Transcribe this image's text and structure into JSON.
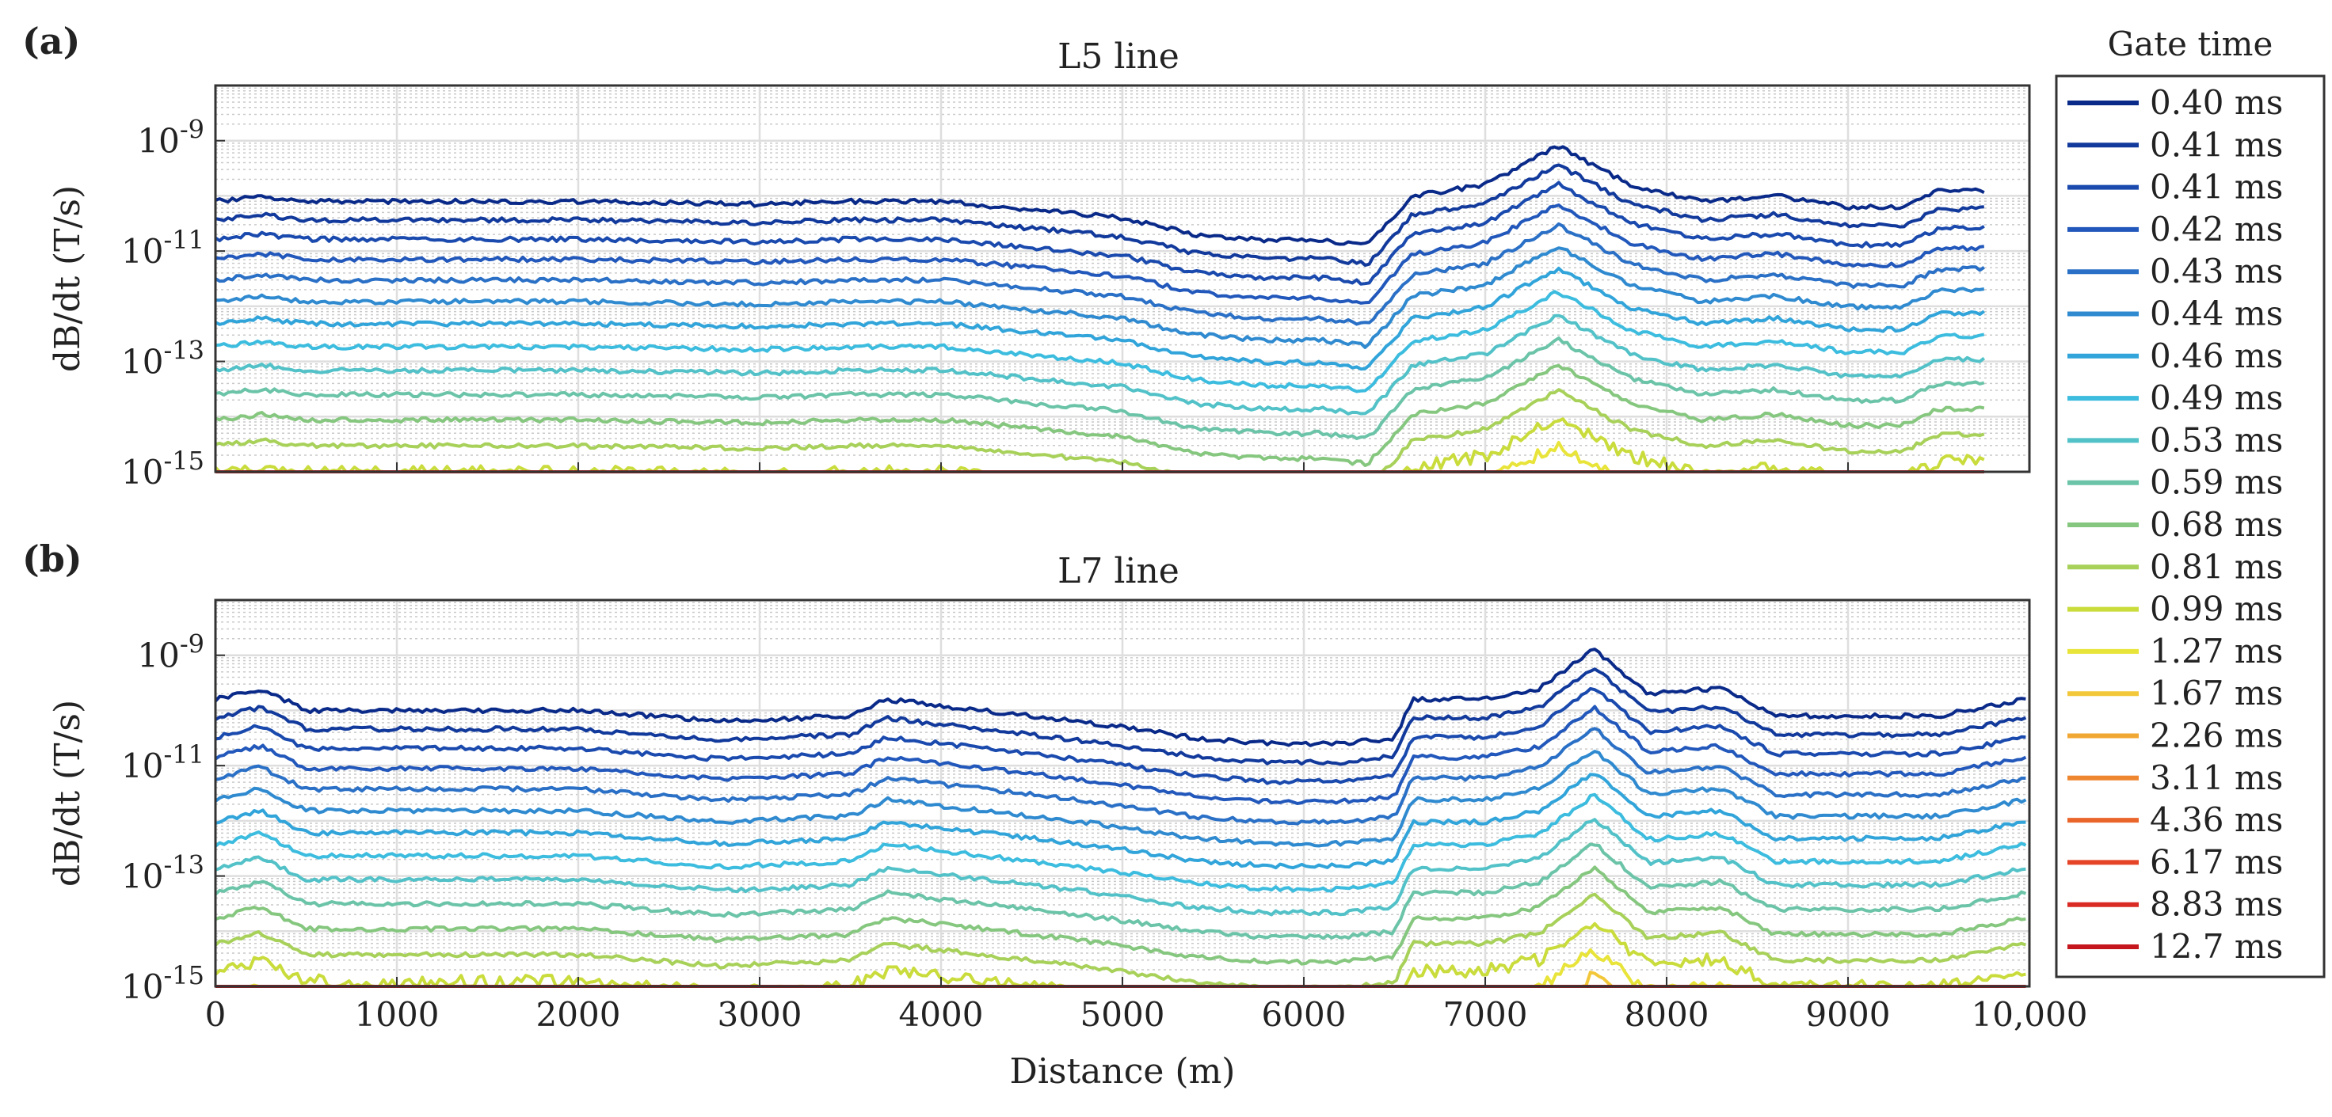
{
  "legend": {
    "title": "Gate time",
    "entries": [
      "0.40 ms",
      "0.41 ms",
      "0.41 ms",
      "0.42 ms",
      "0.43 ms",
      "0.44 ms",
      "0.46 ms",
      "0.49 ms",
      "0.53 ms",
      "0.59 ms",
      "0.68 ms",
      "0.81 ms",
      "0.99 ms",
      "1.27 ms",
      "1.67 ms",
      "2.26 ms",
      "3.11 ms",
      "4.36 ms",
      "6.17 ms",
      "8.83 ms",
      "12.7 ms"
    ],
    "colors": [
      "#0a2a8a",
      "#123a9c",
      "#1a4aae",
      "#2258bb",
      "#2a70c6",
      "#2f8ad0",
      "#31a4da",
      "#3cbcde",
      "#52c2c8",
      "#6bc4a8",
      "#86c77f",
      "#a8d15a",
      "#c9dc3c",
      "#e8e43a",
      "#f3c73a",
      "#f1a733",
      "#ee862f",
      "#ea652a",
      "#e54426",
      "#d92a24",
      "#c4161c"
    ]
  },
  "chart_data": [
    {
      "type": "line",
      "panel_label": "(a)",
      "title": "L5 line",
      "xlabel": "",
      "ylabel": "dB/dt (T/s)",
      "xlim": [
        0,
        10000
      ],
      "ylim_log10": [
        -15,
        -8
      ],
      "yscale": "log",
      "grid": true,
      "x_ticks": [
        0,
        1000,
        2000,
        3000,
        4000,
        5000,
        6000,
        7000,
        8000,
        9000,
        10000
      ],
      "y_ticks": [
        "10 -9",
        "10 -11",
        "10 -13",
        "10 -15"
      ],
      "y_tick_values_log10": [
        -9,
        -11,
        -13,
        -15
      ],
      "series_x_end": 9750,
      "envelope_top_log10": {
        "x": [
          0,
          250,
          500,
          1000,
          2000,
          3000,
          3500,
          4000,
          5000,
          5400,
          5800,
          6100,
          6350,
          6600,
          7000,
          7400,
          7800,
          8200,
          8600,
          9000,
          9300,
          9500,
          9750
        ],
        "y": [
          -10.1,
          -10.0,
          -10.1,
          -10.1,
          -10.1,
          -10.15,
          -10.1,
          -10.1,
          -10.4,
          -10.7,
          -10.8,
          -10.8,
          -10.9,
          -10.0,
          -9.8,
          -9.1,
          -9.8,
          -10.1,
          -10.0,
          -10.2,
          -10.2,
          -9.9,
          -9.9
        ]
      },
      "lowest_gate_log10_range": [
        -15,
        -13
      ]
    },
    {
      "type": "line",
      "panel_label": "(b)",
      "title": "L7 line",
      "xlabel": "Distance (m)",
      "ylabel": "dB/dt (T/s)",
      "xlim": [
        0,
        10000
      ],
      "ylim_log10": [
        -15,
        -8
      ],
      "yscale": "log",
      "grid": true,
      "x_ticks": [
        0,
        1000,
        2000,
        3000,
        4000,
        5000,
        6000,
        7000,
        8000,
        9000,
        10000
      ],
      "x_tick_labels": [
        "0",
        "1000",
        "2000",
        "3000",
        "4000",
        "5000",
        "6000",
        "7000",
        "8000",
        "9000",
        "10,000"
      ],
      "y_ticks": [
        "10 -9",
        "10 -11",
        "10 -13",
        "10 -15"
      ],
      "y_tick_values_log10": [
        -9,
        -11,
        -13,
        -15
      ],
      "series_x_end": 9980,
      "envelope_top_log10": {
        "x": [
          0,
          250,
          500,
          1000,
          2000,
          2800,
          3500,
          3700,
          4500,
          5000,
          5400,
          5800,
          6200,
          6500,
          6600,
          7000,
          7300,
          7600,
          7900,
          8300,
          8600,
          9000,
          9500,
          9980
        ],
        "y": [
          -9.8,
          -9.6,
          -10.0,
          -10.0,
          -10.0,
          -10.2,
          -10.1,
          -9.8,
          -10.1,
          -10.3,
          -10.5,
          -10.6,
          -10.6,
          -10.5,
          -9.8,
          -9.8,
          -9.6,
          -8.9,
          -9.7,
          -9.6,
          -10.1,
          -10.1,
          -10.1,
          -9.8
        ]
      },
      "lowest_gate_log10_range": [
        -15,
        -13
      ]
    }
  ]
}
